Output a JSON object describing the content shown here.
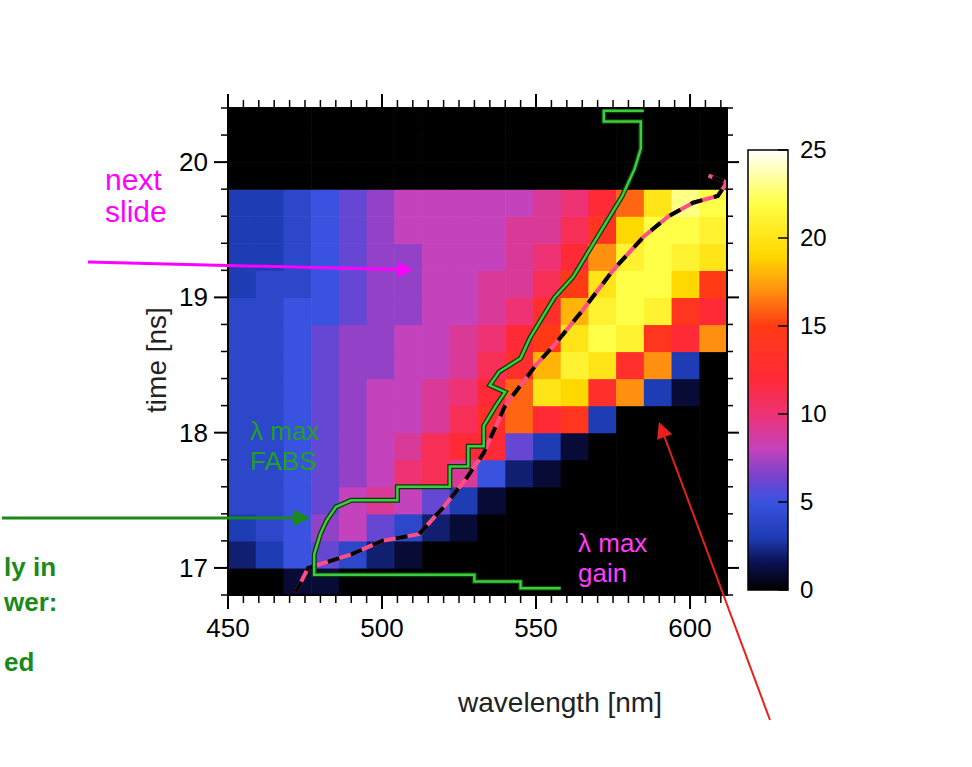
{
  "chart_data": {
    "type": "heatmap",
    "x_label": "wavelength [nm]",
    "y_label": "time [ns]",
    "xlim": [
      450,
      612
    ],
    "ylim": [
      16.8,
      20.4
    ],
    "xticks": [
      450,
      500,
      550,
      600
    ],
    "yticks": [
      17,
      18,
      19,
      20
    ],
    "heatmap": {
      "x_edges": [
        450,
        459,
        468,
        477,
        486,
        495,
        504,
        513,
        522,
        531,
        540,
        549,
        558,
        567,
        576,
        585,
        594,
        603,
        612
      ],
      "y_edges": [
        16.8,
        17.0,
        17.2,
        17.4,
        17.6,
        17.8,
        18.0,
        18.2,
        18.4,
        18.6,
        18.8,
        19.0,
        19.2,
        19.4,
        19.6,
        19.8,
        20.0,
        20.2,
        20.4
      ],
      "z": [
        [
          0,
          0,
          1,
          1,
          0,
          0,
          0,
          0,
          0,
          0,
          0,
          0,
          0,
          0,
          0,
          0,
          0,
          0
        ],
        [
          2,
          3,
          5,
          6,
          4,
          2,
          1,
          0,
          0,
          0,
          0,
          0,
          0,
          0,
          0,
          0,
          0,
          0
        ],
        [
          3,
          4,
          5,
          7,
          8,
          6,
          4,
          2,
          1,
          0,
          0,
          0,
          0,
          0,
          0,
          0,
          0,
          0
        ],
        [
          4,
          4,
          5,
          6,
          8,
          9,
          8,
          6,
          3,
          1,
          0,
          0,
          0,
          0,
          0,
          0,
          0,
          0
        ],
        [
          4,
          4,
          5,
          6,
          7,
          8,
          10,
          11,
          9,
          5,
          2,
          1,
          0,
          0,
          0,
          0,
          0,
          0
        ],
        [
          4,
          4,
          5,
          6,
          7,
          8,
          9,
          11,
          12,
          12,
          6,
          3,
          1,
          0,
          0,
          0,
          0,
          0
        ],
        [
          4,
          4,
          5,
          6,
          7,
          8,
          8,
          9,
          11,
          13,
          16,
          12,
          14,
          3,
          0,
          0,
          0,
          0
        ],
        [
          4,
          4,
          5,
          6,
          7,
          8,
          8,
          9,
          10,
          12,
          16,
          20,
          19,
          13,
          17,
          3,
          1,
          0
        ],
        [
          4,
          4,
          5,
          6,
          7,
          7,
          8,
          8,
          9,
          11,
          13,
          18,
          21,
          20,
          13,
          17,
          3,
          0
        ],
        [
          4,
          4,
          5,
          6,
          7,
          7,
          8,
          8,
          9,
          10,
          12,
          15,
          20,
          22,
          21,
          14,
          12,
          17
        ],
        [
          4,
          4,
          5,
          5,
          6,
          7,
          7,
          8,
          8,
          9,
          10,
          13,
          18,
          21,
          22,
          21,
          14,
          12
        ],
        [
          3,
          4,
          4,
          5,
          6,
          7,
          7,
          8,
          8,
          9,
          9,
          11,
          15,
          20,
          22,
          22,
          19,
          15
        ],
        [
          3,
          3,
          4,
          5,
          6,
          7,
          7,
          8,
          8,
          8,
          9,
          10,
          12,
          17,
          21,
          22,
          21,
          20
        ],
        [
          3,
          3,
          4,
          5,
          6,
          7,
          8,
          8,
          8,
          8,
          9,
          9,
          11,
          14,
          19,
          22,
          22,
          21
        ],
        [
          3,
          3,
          4,
          5,
          6,
          7,
          8,
          8,
          8,
          8,
          8,
          9,
          10,
          12,
          16,
          20,
          23,
          22
        ],
        [
          0,
          0,
          0,
          0,
          0,
          0,
          0,
          0,
          0,
          0,
          0,
          0,
          0,
          0,
          0,
          0,
          0,
          0
        ],
        [
          0,
          0,
          0,
          0,
          0,
          0,
          0,
          0,
          0,
          0,
          0,
          0,
          0,
          0,
          0,
          0,
          0,
          0
        ],
        [
          0,
          0,
          0,
          0,
          0,
          0,
          0,
          0,
          0,
          0,
          0,
          0,
          0,
          0,
          0,
          0,
          0,
          0
        ]
      ]
    },
    "colorbar": {
      "range": [
        0,
        25
      ],
      "ticks": [
        0,
        5,
        10,
        15,
        20,
        25
      ]
    },
    "series": [
      {
        "name": "λ max gain",
        "type": "line",
        "color": "#ff4f86",
        "line_style": "dashed",
        "x": [
          472,
          476,
          490,
          500,
          512,
          520,
          527,
          533,
          537,
          540,
          545,
          550,
          556,
          565,
          575,
          585,
          593,
          601,
          609,
          612,
          606
        ],
        "values": [
          16.82,
          17.0,
          17.1,
          17.2,
          17.25,
          17.45,
          17.65,
          17.85,
          18.05,
          18.2,
          18.35,
          18.5,
          18.65,
          18.9,
          19.2,
          19.45,
          19.6,
          19.7,
          19.75,
          19.85,
          19.9
        ]
      },
      {
        "name": "λ max FABS",
        "type": "line",
        "color": "#3dcc3d",
        "line_style": "solid",
        "x": [
          558,
          545,
          545,
          530,
          530,
          478,
          478,
          480,
          482,
          485,
          490,
          505,
          505,
          522,
          522,
          528,
          528,
          533,
          533,
          537,
          540,
          535,
          538,
          545,
          548,
          552,
          556,
          562,
          566,
          570,
          574,
          578,
          580,
          582,
          584,
          584,
          572,
          572,
          585
        ],
        "values": [
          16.85,
          16.85,
          16.9,
          16.9,
          16.95,
          16.95,
          17.1,
          17.25,
          17.35,
          17.45,
          17.5,
          17.5,
          17.6,
          17.6,
          17.75,
          17.75,
          17.9,
          17.9,
          18.05,
          18.2,
          18.3,
          18.35,
          18.45,
          18.55,
          18.7,
          18.85,
          19.0,
          19.15,
          19.3,
          19.45,
          19.6,
          19.75,
          19.85,
          19.95,
          20.1,
          20.3,
          20.3,
          20.38,
          20.38
        ]
      }
    ],
    "annotations": [
      {
        "text": "next slide",
        "color": "#ff00ff"
      },
      {
        "text": "ly in",
        "color": "#1a8a1a"
      },
      {
        "text": "wer:",
        "color": "#1a8a1a"
      },
      {
        "text": "ed",
        "color": "#1a8a1a"
      }
    ]
  }
}
